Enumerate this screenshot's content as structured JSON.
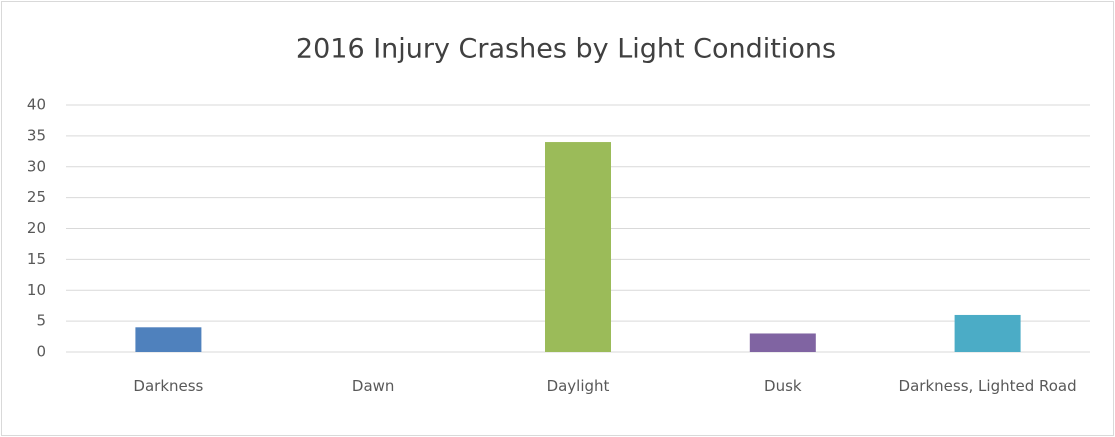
{
  "chart_data": {
    "type": "bar",
    "title": "2016 Injury Crashes by Light Conditions",
    "categories": [
      "Darkness",
      "Dawn",
      "Daylight",
      "Dusk",
      "Darkness, Lighted Road"
    ],
    "values": [
      4,
      0,
      34,
      3,
      6
    ],
    "colors": [
      "#4f81bd",
      "#c0504d",
      "#9bbb59",
      "#8064a2",
      "#4bacc6"
    ],
    "ylim": [
      0,
      40
    ],
    "yticks": [
      0,
      5,
      10,
      15,
      20,
      25,
      30,
      35,
      40
    ],
    "grid": true
  }
}
